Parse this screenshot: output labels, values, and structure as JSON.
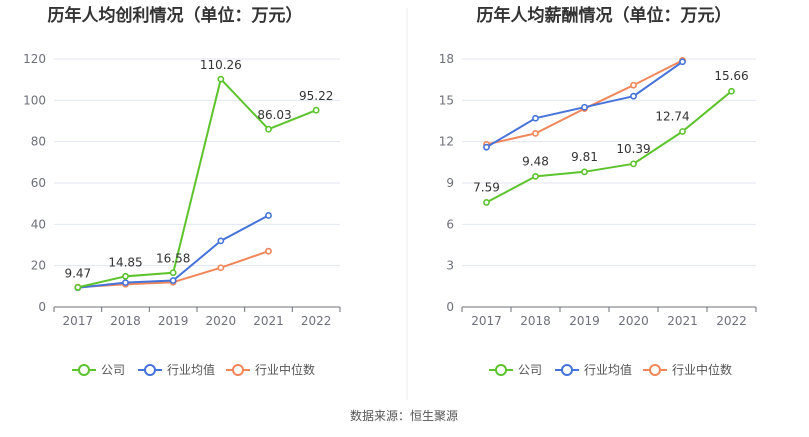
{
  "source": "数据来源：恒生聚源",
  "legend_labels": [
    "公司",
    "行业均值",
    "行业中位数"
  ],
  "colors": {
    "company": "#5cc32c",
    "industry_mean": "#4573d9",
    "industry_median": "#f0865a"
  },
  "chart_data": [
    {
      "type": "line",
      "title": "历年人均创利情况（单位：万元）",
      "categories": [
        "2017",
        "2018",
        "2019",
        "2020",
        "2021",
        "2022"
      ],
      "ylim": [
        0,
        120
      ],
      "yticks": [
        0,
        20,
        40,
        60,
        80,
        100,
        120
      ],
      "grid": true,
      "legend_position": "bottom",
      "series": [
        {
          "name": "公司",
          "values": [
            9.47,
            14.85,
            16.58,
            110.26,
            86.03,
            95.22
          ],
          "labels": [
            "9.47",
            "14.85",
            "16.58",
            "110.26",
            "86.03",
            "95.22"
          ]
        },
        {
          "name": "行业均值",
          "values": [
            9.3,
            11.8,
            12.8,
            32.0,
            44.3,
            null
          ]
        },
        {
          "name": "行业中位数",
          "values": [
            9.6,
            11.0,
            12.0,
            19.0,
            27.0,
            null
          ]
        }
      ]
    },
    {
      "type": "line",
      "title": "历年人均薪酬情况（单位：万元）",
      "categories": [
        "2017",
        "2018",
        "2019",
        "2020",
        "2021",
        "2022"
      ],
      "ylim": [
        0,
        18
      ],
      "yticks": [
        0,
        3,
        6,
        9,
        12,
        15,
        18
      ],
      "grid": true,
      "legend_position": "bottom",
      "series": [
        {
          "name": "公司",
          "values": [
            7.59,
            9.48,
            9.81,
            10.39,
            12.74,
            15.66
          ],
          "labels": [
            "7.59",
            "9.48",
            "9.81",
            "10.39",
            "12.74",
            "15.66"
          ]
        },
        {
          "name": "行业均值",
          "values": [
            11.6,
            13.7,
            14.5,
            15.3,
            17.8,
            null
          ]
        },
        {
          "name": "行业中位数",
          "values": [
            11.8,
            12.6,
            14.4,
            16.1,
            17.9,
            null
          ]
        }
      ]
    }
  ]
}
